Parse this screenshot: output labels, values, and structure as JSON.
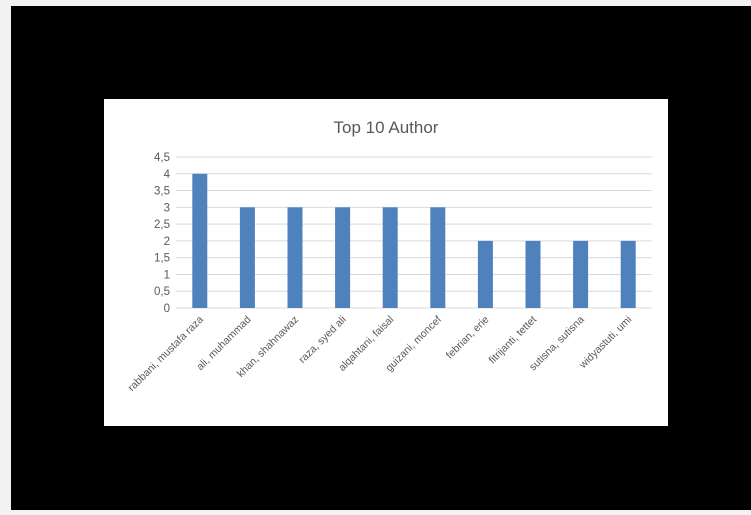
{
  "colors": {
    "background": "#000000",
    "card": "#ffffff",
    "bar": "#4f81bd",
    "grid": "#d9d9d9",
    "text": "#595959"
  },
  "chart_data": {
    "type": "bar",
    "title": "Top 10 Author",
    "xlabel": "",
    "ylabel": "",
    "ylim": [
      0,
      4.5
    ],
    "y_ticks": [
      "0",
      "0,5",
      "1",
      "1,5",
      "2",
      "2,5",
      "3",
      "3,5",
      "4",
      "4,5"
    ],
    "grid": true,
    "legend": "none",
    "categories": [
      "rabbani, mustafa raza",
      "ali, muhammad",
      "khan, shahnawaz",
      "raza, syed ali",
      "alqahtani, faisal",
      "guizani, moncef",
      "febrian, erie",
      "fitrijanti, tettet",
      "sutisna, sutisna",
      "widyastuti, umi"
    ],
    "values": [
      4,
      3,
      3,
      3,
      3,
      3,
      2,
      2,
      2,
      2
    ]
  }
}
